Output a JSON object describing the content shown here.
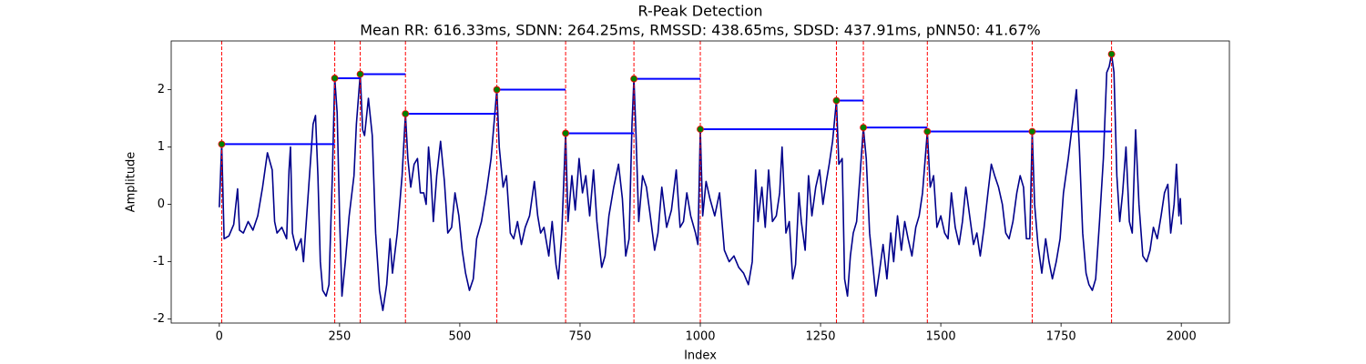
{
  "chart_data": {
    "type": "line",
    "title": "R-Peak Detection",
    "subtitle": "Mean RR: 616.33ms, SDNN: 264.25ms, RMSSD: 438.65ms, SDSD: 437.91ms, pNN50: 41.67%",
    "xlabel": "Index",
    "ylabel": "Amplitude",
    "color": "#00008b",
    "x": [
      0,
      5,
      10,
      20,
      30,
      38,
      42,
      50,
      60,
      70,
      80,
      90,
      100,
      110,
      115,
      120,
      130,
      140,
      145,
      148,
      152,
      160,
      170,
      175,
      180,
      190,
      195,
      200,
      205,
      210,
      215,
      222,
      228,
      235,
      240,
      245,
      250,
      255,
      262,
      270,
      280,
      285,
      293,
      298,
      302,
      310,
      318,
      325,
      333,
      340,
      348,
      355,
      360,
      370,
      380,
      387,
      392,
      398,
      405,
      412,
      418,
      425,
      430,
      435,
      440,
      445,
      452,
      460,
      468,
      475,
      483,
      490,
      498,
      505,
      512,
      520,
      528,
      535,
      545,
      555,
      565,
      572,
      577,
      582,
      590,
      597,
      605,
      612,
      620,
      628,
      636,
      645,
      655,
      662,
      668,
      675,
      685,
      692,
      700,
      705,
      712,
      720,
      725,
      733,
      740,
      748,
      755,
      762,
      770,
      778,
      785,
      795,
      802,
      810,
      820,
      830,
      838,
      845,
      852,
      858,
      862,
      866,
      872,
      880,
      888,
      896,
      905,
      912,
      920,
      930,
      940,
      950,
      958,
      965,
      972,
      980,
      990,
      995,
      1000,
      1005,
      1012,
      1020,
      1030,
      1040,
      1050,
      1060,
      1070,
      1080,
      1090,
      1100,
      1108,
      1115,
      1120,
      1128,
      1135,
      1142,
      1150,
      1158,
      1165,
      1170,
      1178,
      1185,
      1192,
      1198,
      1205,
      1210,
      1218,
      1225,
      1232,
      1240,
      1248,
      1255,
      1262,
      1268,
      1275,
      1283,
      1288,
      1295,
      1300,
      1306,
      1312,
      1318,
      1325,
      1332,
      1339,
      1345,
      1352,
      1358,
      1365,
      1372,
      1380,
      1388,
      1396,
      1402,
      1410,
      1418,
      1425,
      1432,
      1440,
      1448,
      1455,
      1462,
      1472,
      1478,
      1485,
      1492,
      1500,
      1508,
      1515,
      1522,
      1530,
      1538,
      1545,
      1552,
      1560,
      1568,
      1575,
      1582,
      1590,
      1598,
      1605,
      1612,
      1620,
      1628,
      1635,
      1642,
      1650,
      1658,
      1665,
      1672,
      1678,
      1685,
      1690,
      1695,
      1702,
      1710,
      1718,
      1725,
      1732,
      1740,
      1748,
      1755,
      1765,
      1775,
      1782,
      1788,
      1795,
      1802,
      1808,
      1815,
      1822,
      1830,
      1838,
      1845,
      1850,
      1855,
      1860,
      1866,
      1872,
      1878,
      1885,
      1892,
      1898,
      1905,
      1912,
      1920,
      1928,
      1935,
      1942,
      1950,
      1958,
      1965,
      1972,
      1978,
      1985,
      1990,
      1995,
      1998,
      2000
    ],
    "values": [
      -0.05,
      1.05,
      -0.6,
      -0.55,
      -0.35,
      0.27,
      -0.45,
      -0.5,
      -0.3,
      -0.45,
      -0.2,
      0.3,
      0.9,
      0.6,
      -0.3,
      -0.5,
      -0.4,
      -0.6,
      0.6,
      1.0,
      -0.5,
      -0.8,
      -0.6,
      -1.0,
      -0.4,
      0.8,
      1.4,
      1.55,
      0.5,
      -1.0,
      -1.5,
      -1.6,
      -1.4,
      0.5,
      2.2,
      1.6,
      -0.2,
      -1.6,
      -1.0,
      -0.2,
      0.5,
      1.4,
      2.27,
      1.3,
      1.2,
      1.85,
      1.2,
      -0.5,
      -1.5,
      -1.85,
      -1.4,
      -0.6,
      -1.2,
      -0.5,
      0.5,
      1.58,
      0.8,
      0.3,
      0.7,
      0.8,
      0.2,
      0.2,
      0.0,
      1.0,
      0.5,
      -0.3,
      0.5,
      1.1,
      0.4,
      -0.5,
      -0.4,
      0.2,
      -0.2,
      -0.8,
      -1.2,
      -1.5,
      -1.3,
      -0.6,
      -0.3,
      0.2,
      0.8,
      1.5,
      2.0,
      1.0,
      0.3,
      0.5,
      -0.5,
      -0.6,
      -0.3,
      -0.7,
      -0.4,
      -0.2,
      0.4,
      -0.2,
      -0.5,
      -0.4,
      -0.9,
      -0.3,
      -1.05,
      -1.3,
      -0.5,
      1.24,
      -0.3,
      0.5,
      -0.1,
      0.8,
      0.2,
      0.5,
      -0.2,
      0.6,
      -0.3,
      -1.1,
      -0.9,
      -0.2,
      0.3,
      0.7,
      0.1,
      -0.9,
      -0.6,
      1.4,
      2.19,
      1.3,
      -0.3,
      0.5,
      0.3,
      -0.2,
      -0.8,
      -0.5,
      0.3,
      -0.4,
      -0.1,
      0.6,
      -0.4,
      -0.3,
      0.2,
      -0.2,
      -0.5,
      -0.7,
      1.31,
      -0.2,
      0.4,
      0.1,
      -0.2,
      0.2,
      -0.8,
      -1.0,
      -0.9,
      -1.1,
      -1.2,
      -1.4,
      -1.0,
      0.6,
      -0.3,
      0.3,
      -0.4,
      0.6,
      -0.3,
      -0.2,
      0.2,
      1.0,
      -0.5,
      -0.3,
      -1.3,
      -1.05,
      0.2,
      -0.3,
      -0.8,
      0.5,
      -0.2,
      0.3,
      0.6,
      0.0,
      0.4,
      0.7,
      1.1,
      1.81,
      0.7,
      0.8,
      -1.3,
      -1.6,
      -0.9,
      -0.5,
      -0.3,
      0.5,
      1.34,
      0.8,
      -0.5,
      -1.0,
      -1.6,
      -1.2,
      -0.7,
      -1.3,
      -0.5,
      -1.0,
      -0.2,
      -0.8,
      -0.3,
      -0.6,
      -0.9,
      -0.4,
      -0.2,
      0.2,
      1.27,
      0.3,
      0.5,
      -0.4,
      -0.2,
      -0.5,
      -0.6,
      0.2,
      -0.4,
      -0.7,
      -0.3,
      0.3,
      -0.2,
      -0.7,
      -0.5,
      -0.9,
      -0.4,
      0.2,
      0.7,
      0.5,
      0.3,
      0.0,
      -0.5,
      -0.6,
      -0.3,
      0.2,
      0.5,
      0.3,
      -0.6,
      -0.6,
      1.27,
      0.0,
      -0.7,
      -1.2,
      -0.6,
      -1.0,
      -1.3,
      -1.0,
      -0.6,
      0.2,
      0.8,
      1.5,
      2.0,
      1.0,
      -0.5,
      -1.2,
      -1.4,
      -1.5,
      -1.3,
      -0.3,
      0.8,
      2.3,
      2.4,
      2.62,
      2.3,
      0.5,
      -0.3,
      0.2,
      1.0,
      -0.3,
      -0.5,
      1.3,
      0.0,
      -0.9,
      -1.0,
      -0.8,
      -0.4,
      -0.6,
      -0.2,
      0.2,
      0.35,
      -0.5,
      0.0,
      0.7,
      -0.2,
      0.1,
      -0.35
    ],
    "peaks": {
      "x": [
        5,
        240,
        293,
        387,
        577,
        720,
        862,
        1000,
        1283,
        1339,
        1472,
        1690,
        1855
      ],
      "values": [
        1.05,
        2.2,
        2.27,
        1.58,
        2.0,
        1.24,
        2.19,
        1.31,
        1.81,
        1.34,
        1.27,
        1.27,
        2.62
      ],
      "marker_color": "green",
      "marker_edge": "red",
      "vline_color": "red",
      "interval_color": "blue"
    },
    "xlim": [
      -100,
      2100
    ],
    "ylim": [
      -2.07,
      2.85
    ],
    "xticks": [
      0,
      250,
      500,
      750,
      1000,
      1250,
      1500,
      1750,
      2000
    ],
    "yticks": [
      -2,
      -1,
      0,
      1,
      2
    ]
  }
}
